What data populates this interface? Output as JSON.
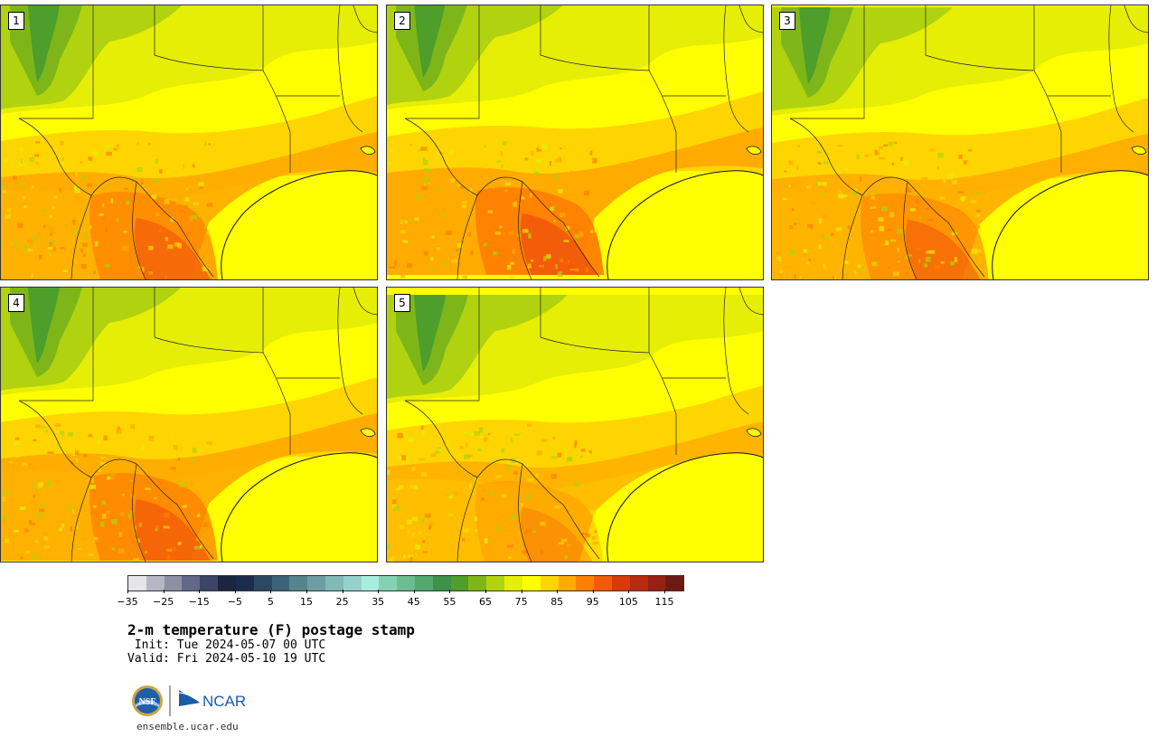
{
  "panels": [
    {
      "label": "1",
      "variant": 1.0
    },
    {
      "label": "2",
      "variant": 1.25
    },
    {
      "label": "3",
      "variant": 0.9
    },
    {
      "label": "4",
      "variant": 1.05
    },
    {
      "label": "5",
      "variant": 0.6
    }
  ],
  "colorbar": {
    "colors": [
      "#e6e6ea",
      "#b5b7c5",
      "#8d90a5",
      "#63688a",
      "#3c4467",
      "#1b2540",
      "#1d2c4d",
      "#2b4863",
      "#3c6478",
      "#55838e",
      "#6d9ea4",
      "#82b9b7",
      "#97d1cc",
      "#a8eee0",
      "#84d2b2",
      "#6bbd91",
      "#52a96e",
      "#3d924a",
      "#4d9e2a",
      "#7eb619",
      "#b1d20f",
      "#e6ee05",
      "#ffff00",
      "#ffd500",
      "#ffaa00",
      "#ff8000",
      "#f25a0a",
      "#d93a0a",
      "#b82a0f",
      "#962014",
      "#6e1a14"
    ],
    "ticks": [
      "−35",
      "−25",
      "−15",
      "−5",
      "5",
      "15",
      "25",
      "35",
      "45",
      "55",
      "65",
      "75",
      "85",
      "95",
      "105",
      "115"
    ]
  },
  "title": "2-m temperature (F) postage stamp",
  "init": " Init: Tue 2024-05-07 00 UTC",
  "valid": "Valid: Fri 2024-05-10 19 UTC",
  "logos": {
    "nsf": "NSF",
    "ncar": "NCAR"
  },
  "url": "ensemble.ucar.edu"
}
